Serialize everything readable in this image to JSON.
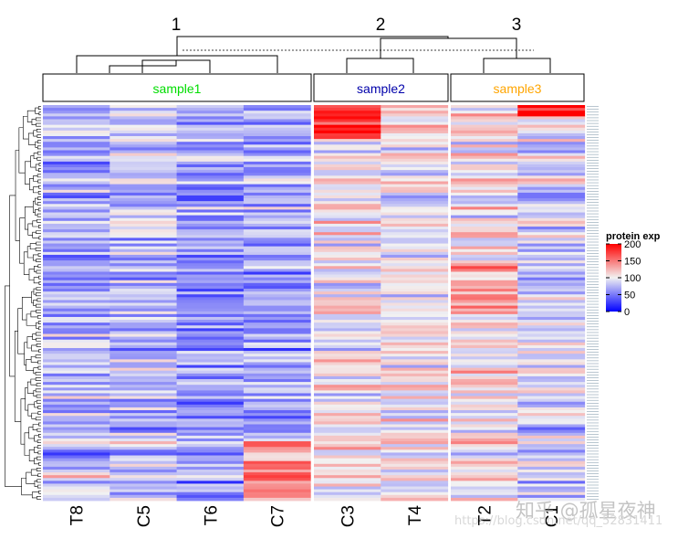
{
  "chart_data": {
    "type": "heatmap",
    "title": "",
    "xlabel": "",
    "ylabel": "",
    "colorscale": {
      "title": "protein exp",
      "min": 0,
      "max": 200,
      "ticks": [
        200,
        150,
        100,
        50,
        0
      ],
      "colors": {
        "low": "#0000ff",
        "mid": "#f2f2f2",
        "high": "#ff0000"
      }
    },
    "column_clusters": [
      {
        "number": "1",
        "label": "sample1",
        "label_color": "#00dd00",
        "columns": [
          "T8",
          "C5",
          "T6",
          "C7"
        ]
      },
      {
        "number": "2",
        "label": "sample2",
        "label_color": "#0000aa",
        "columns": [
          "C3",
          "T4"
        ]
      },
      {
        "number": "3",
        "label": "sample3",
        "label_color": "#ffa500",
        "columns": [
          "T2",
          "C1"
        ]
      }
    ],
    "columns": [
      "T8",
      "C5",
      "T6",
      "C7",
      "C3",
      "T4",
      "T2",
      "C1"
    ],
    "row_count": 140,
    "value_range": [
      0,
      200
    ],
    "values_note": ""
  },
  "watermark": {
    "brand": "知乎 @孤星夜神",
    "url": "https://blog.csdn.net/qq_52831411"
  }
}
